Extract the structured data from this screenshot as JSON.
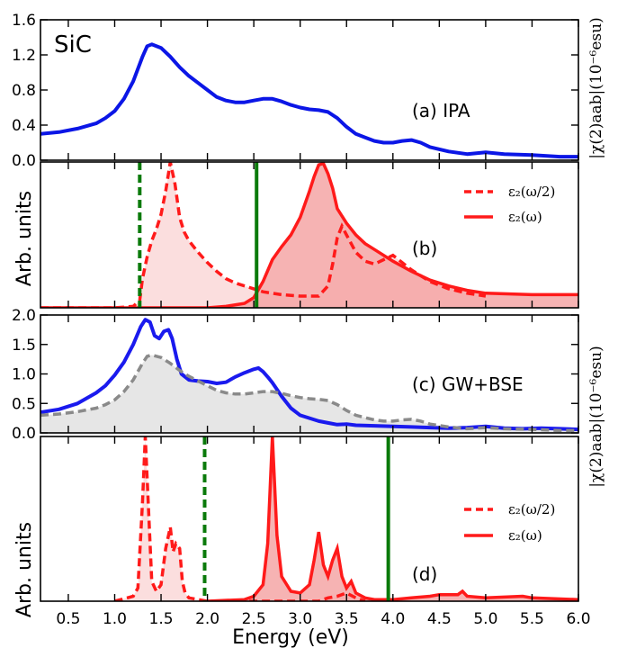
{
  "figure": {
    "colors": {
      "ipa_line": "#0b16e6",
      "gwbse_line": "#1a1aee",
      "ipa_gray": "#8a8a8a",
      "gray_fill": "#e6e6e6",
      "red": "#ff1a1a",
      "red_fill": "#f4a6a6",
      "red_fill_light": "#fbdede",
      "green": "#0a7a0a"
    },
    "chart_data": [
      {
        "type": "line",
        "panel": "a",
        "title": "SiC",
        "annotation": "(a) IPA",
        "xlim": [
          0.2,
          6.0
        ],
        "ylim": [
          0.0,
          1.6
        ],
        "yticks": [
          "0.0",
          "0.4",
          "0.8",
          "1.2",
          "1.6"
        ],
        "ylabel_right": "|χ(2)aab|(10⁻⁶esu)",
        "series": [
          {
            "x": [
              0.2,
              0.4,
              0.6,
              0.8,
              0.9,
              1.0,
              1.1,
              1.2,
              1.3,
              1.35,
              1.4,
              1.5,
              1.6,
              1.7,
              1.8,
              1.9,
              2.0,
              2.1,
              2.2,
              2.3,
              2.4,
              2.5,
              2.6,
              2.7,
              2.8,
              2.9,
              3.0,
              3.1,
              3.2,
              3.3,
              3.4,
              3.5,
              3.6,
              3.7,
              3.8,
              3.9,
              4.0,
              4.1,
              4.2,
              4.3,
              4.4,
              4.6,
              4.8,
              5.0,
              5.2,
              5.5,
              5.8,
              6.0
            ],
            "y": [
              0.3,
              0.32,
              0.36,
              0.42,
              0.48,
              0.56,
              0.7,
              0.9,
              1.18,
              1.3,
              1.32,
              1.28,
              1.18,
              1.06,
              0.96,
              0.88,
              0.8,
              0.72,
              0.68,
              0.66,
              0.66,
              0.68,
              0.7,
              0.7,
              0.67,
              0.63,
              0.6,
              0.58,
              0.57,
              0.55,
              0.48,
              0.38,
              0.3,
              0.26,
              0.22,
              0.2,
              0.2,
              0.22,
              0.23,
              0.2,
              0.15,
              0.1,
              0.07,
              0.09,
              0.07,
              0.06,
              0.04,
              0.04
            ]
          }
        ]
      },
      {
        "type": "area",
        "panel": "b",
        "annotation": "(b)",
        "ylabel": "Arb. units",
        "xlim": [
          0.2,
          6.0
        ],
        "ylim": [
          0,
          1.0
        ],
        "vlines": [
          {
            "x": 1.27,
            "style": "dashed"
          },
          {
            "x": 2.53,
            "style": "solid"
          }
        ],
        "series": [
          {
            "name": "ε₂(ω/2)",
            "style": "dashed",
            "x": [
              0.2,
              1.0,
              1.2,
              1.27,
              1.3,
              1.35,
              1.4,
              1.45,
              1.5,
              1.55,
              1.6,
              1.65,
              1.7,
              1.75,
              1.8,
              1.9,
              2.0,
              2.1,
              2.2,
              2.3,
              2.4,
              2.5,
              2.6,
              2.8,
              3.0,
              3.2,
              3.3,
              3.35,
              3.4,
              3.45,
              3.5,
              3.55,
              3.6,
              3.7,
              3.8,
              3.9,
              4.0,
              4.1,
              4.2,
              4.3,
              4.4,
              4.6,
              4.8,
              5.0
            ],
            "y": [
              0.0,
              0.0,
              0.01,
              0.05,
              0.2,
              0.35,
              0.46,
              0.54,
              0.64,
              0.8,
              1.0,
              0.85,
              0.62,
              0.52,
              0.46,
              0.38,
              0.31,
              0.25,
              0.2,
              0.17,
              0.15,
              0.13,
              0.11,
              0.09,
              0.08,
              0.08,
              0.15,
              0.3,
              0.48,
              0.56,
              0.5,
              0.44,
              0.38,
              0.32,
              0.3,
              0.33,
              0.36,
              0.31,
              0.26,
              0.22,
              0.18,
              0.13,
              0.1,
              0.08
            ]
          },
          {
            "name": "ε₂(ω)",
            "style": "solid",
            "x": [
              0.2,
              2.0,
              2.2,
              2.4,
              2.5,
              2.6,
              2.7,
              2.8,
              2.9,
              3.0,
              3.1,
              3.15,
              3.2,
              3.25,
              3.3,
              3.35,
              3.4,
              3.5,
              3.6,
              3.7,
              3.8,
              3.9,
              4.0,
              4.2,
              4.4,
              4.6,
              4.8,
              5.0,
              5.5,
              6.0
            ],
            "y": [
              0.0,
              0.0,
              0.01,
              0.03,
              0.07,
              0.18,
              0.33,
              0.42,
              0.5,
              0.62,
              0.8,
              0.9,
              0.98,
              0.99,
              0.92,
              0.82,
              0.68,
              0.58,
              0.5,
              0.44,
              0.4,
              0.36,
              0.32,
              0.25,
              0.19,
              0.15,
              0.12,
              0.1,
              0.09,
              0.09
            ]
          }
        ]
      },
      {
        "type": "line",
        "panel": "c",
        "annotation": "(c) GW+BSE",
        "xlim": [
          0.2,
          6.0
        ],
        "ylim": [
          0.0,
          2.0
        ],
        "yticks": [
          "0.0",
          "0.5",
          "1.0",
          "1.5",
          "2.0"
        ],
        "ylabel_right": "|χ(2)aab|(10⁻⁶esu)",
        "series": [
          {
            "style": "solid",
            "x": [
              0.2,
              0.4,
              0.6,
              0.8,
              0.9,
              1.0,
              1.1,
              1.2,
              1.28,
              1.33,
              1.38,
              1.43,
              1.48,
              1.53,
              1.58,
              1.62,
              1.67,
              1.72,
              1.8,
              1.9,
              2.0,
              2.1,
              2.2,
              2.3,
              2.4,
              2.5,
              2.55,
              2.6,
              2.65,
              2.7,
              2.8,
              2.9,
              3.0,
              3.1,
              3.2,
              3.3,
              3.4,
              3.5,
              3.6,
              3.8,
              4.0,
              4.2,
              4.4,
              4.6,
              4.8,
              5.0,
              5.2,
              5.4,
              5.6,
              5.8,
              6.0
            ],
            "y": [
              0.35,
              0.4,
              0.5,
              0.68,
              0.8,
              0.98,
              1.2,
              1.5,
              1.8,
              1.92,
              1.88,
              1.65,
              1.6,
              1.72,
              1.75,
              1.6,
              1.25,
              1.0,
              0.9,
              0.88,
              0.87,
              0.84,
              0.86,
              0.95,
              1.02,
              1.08,
              1.1,
              1.04,
              0.95,
              0.85,
              0.62,
              0.42,
              0.3,
              0.25,
              0.2,
              0.17,
              0.14,
              0.15,
              0.13,
              0.12,
              0.11,
              0.1,
              0.09,
              0.08,
              0.09,
              0.11,
              0.08,
              0.07,
              0.08,
              0.07,
              0.06
            ]
          },
          {
            "style": "dashed",
            "fill": true,
            "x": [
              0.2,
              0.4,
              0.6,
              0.8,
              0.9,
              1.0,
              1.1,
              1.2,
              1.3,
              1.35,
              1.4,
              1.5,
              1.6,
              1.7,
              1.8,
              1.9,
              2.0,
              2.1,
              2.2,
              2.3,
              2.4,
              2.5,
              2.6,
              2.7,
              2.8,
              2.9,
              3.0,
              3.1,
              3.2,
              3.3,
              3.4,
              3.5,
              3.6,
              3.7,
              3.8,
              3.9,
              4.0,
              4.1,
              4.2,
              4.3,
              4.4,
              4.6,
              4.8,
              5.0,
              5.2,
              5.5,
              5.8,
              6.0
            ],
            "y": [
              0.3,
              0.32,
              0.36,
              0.42,
              0.48,
              0.56,
              0.7,
              0.9,
              1.18,
              1.3,
              1.32,
              1.28,
              1.18,
              1.06,
              0.96,
              0.88,
              0.8,
              0.72,
              0.68,
              0.66,
              0.66,
              0.68,
              0.7,
              0.7,
              0.67,
              0.63,
              0.6,
              0.58,
              0.57,
              0.55,
              0.48,
              0.38,
              0.3,
              0.26,
              0.22,
              0.2,
              0.2,
              0.22,
              0.23,
              0.2,
              0.15,
              0.1,
              0.07,
              0.09,
              0.07,
              0.06,
              0.04,
              0.04
            ]
          }
        ]
      },
      {
        "type": "area",
        "panel": "d",
        "annotation": "(d)",
        "ylabel": "Arb. units",
        "xlim": [
          0.2,
          6.0
        ],
        "ylim": [
          0,
          1.0
        ],
        "xticks": [
          "0.5",
          "1.0",
          "1.5",
          "2.0",
          "2.5",
          "3.0",
          "3.5",
          "4.0",
          "4.5",
          "5.0",
          "5.5",
          "6.0"
        ],
        "xlabel": "Energy (eV)",
        "vlines": [
          {
            "x": 1.97,
            "style": "dashed"
          },
          {
            "x": 3.95,
            "style": "solid"
          }
        ],
        "series": [
          {
            "name": "ε₂(ω/2)",
            "style": "dashed",
            "x": [
              1.0,
              1.2,
              1.25,
              1.3,
              1.33,
              1.36,
              1.4,
              1.45,
              1.5,
              1.55,
              1.6,
              1.63,
              1.66,
              1.7,
              1.73,
              1.76,
              1.8,
              1.9,
              2.0,
              2.5,
              3.0,
              3.2,
              3.3,
              3.4,
              3.5,
              3.6,
              3.7
            ],
            "y": [
              0.0,
              0.03,
              0.08,
              0.6,
              1.0,
              0.62,
              0.12,
              0.06,
              0.1,
              0.32,
              0.45,
              0.3,
              0.35,
              0.32,
              0.12,
              0.05,
              0.02,
              0.01,
              0.0,
              0.0,
              0.0,
              0.0,
              0.02,
              0.03,
              0.05,
              0.02,
              0.0
            ]
          },
          {
            "name": "ε₂(ω)",
            "style": "solid",
            "x": [
              2.0,
              2.4,
              2.5,
              2.6,
              2.65,
              2.7,
              2.75,
              2.8,
              2.9,
              3.0,
              3.1,
              3.15,
              3.2,
              3.25,
              3.3,
              3.35,
              3.4,
              3.45,
              3.5,
              3.55,
              3.6,
              3.7,
              3.8,
              4.0,
              4.2,
              4.4,
              4.5,
              4.7,
              4.75,
              4.8,
              5.0,
              5.4,
              5.5,
              6.0
            ],
            "y": [
              0.0,
              0.01,
              0.03,
              0.1,
              0.35,
              1.0,
              0.4,
              0.15,
              0.06,
              0.05,
              0.1,
              0.25,
              0.42,
              0.22,
              0.15,
              0.25,
              0.32,
              0.15,
              0.08,
              0.12,
              0.05,
              0.02,
              0.01,
              0.01,
              0.02,
              0.03,
              0.04,
              0.04,
              0.06,
              0.03,
              0.02,
              0.03,
              0.02,
              0.01
            ]
          }
        ]
      }
    ],
    "legend_b": [
      {
        "label": "ε₂(ω/2)",
        "style": "dashed"
      },
      {
        "label": "ε₂(ω)",
        "style": "solid"
      }
    ],
    "legend_d": [
      {
        "label": "ε₂(ω/2)",
        "style": "dashed"
      },
      {
        "label": "ε₂(ω)",
        "style": "solid"
      }
    ]
  }
}
